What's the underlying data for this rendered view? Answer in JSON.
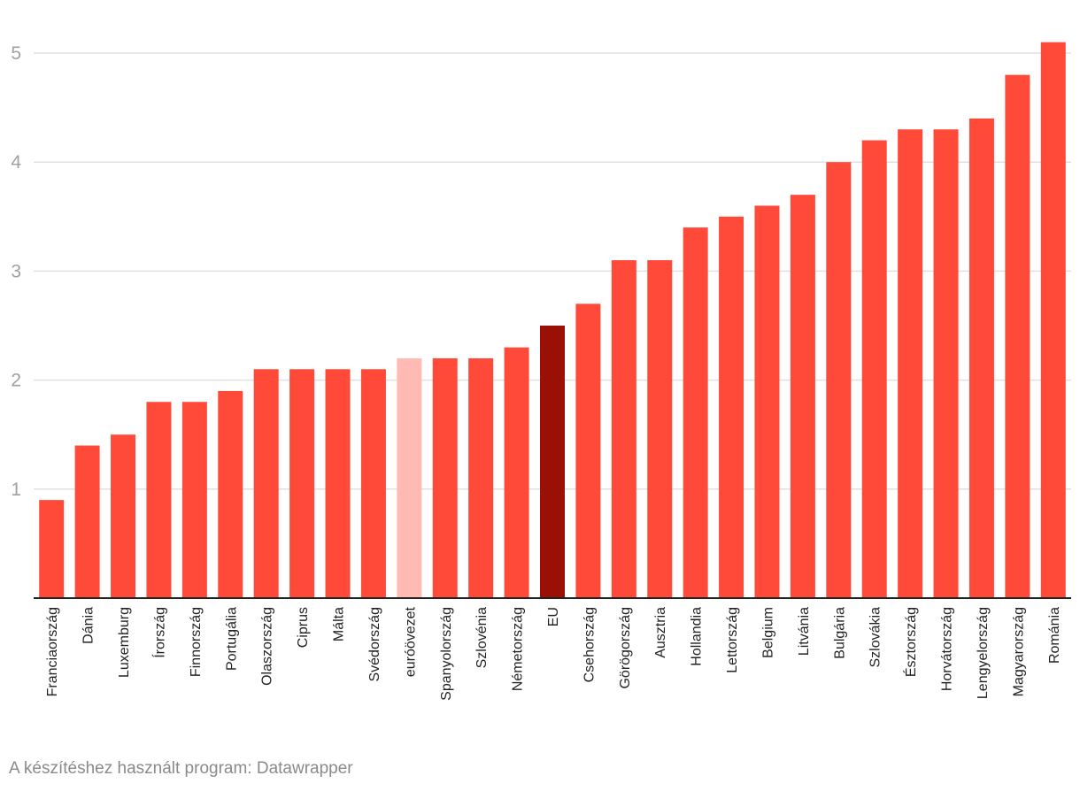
{
  "chart_data": {
    "type": "bar",
    "title": "",
    "xlabel": "",
    "ylabel": "",
    "ylim": [
      0,
      5.2
    ],
    "yticks": [
      1,
      2,
      3,
      4,
      5
    ],
    "grid": true,
    "categories": [
      "Franciaország",
      "Dánia",
      "Luxemburg",
      "Írország",
      "Finnország",
      "Portugália",
      "Olaszország",
      "Ciprus",
      "Málta",
      "Svédország",
      "euróövezet",
      "Spanyolország",
      "Szlovénia",
      "Németország",
      "EU",
      "Csehország",
      "Görögország",
      "Ausztria",
      "Hollandia",
      "Lettország",
      "Belgium",
      "Litvánia",
      "Bulgária",
      "Szlovákia",
      "Észtország",
      "Horvátország",
      "Lengyelország",
      "Magyarország",
      "Románia"
    ],
    "values": [
      0.9,
      1.4,
      1.5,
      1.8,
      1.8,
      1.9,
      2.1,
      2.1,
      2.1,
      2.1,
      2.2,
      2.2,
      2.2,
      2.3,
      2.5,
      2.7,
      3.1,
      3.1,
      3.4,
      3.5,
      3.6,
      3.7,
      4.0,
      4.2,
      4.3,
      4.3,
      4.4,
      4.8,
      5.1
    ],
    "highlights": {
      "euróövezet": "#ffbab4",
      "EU": "#9b1004"
    },
    "colors": {
      "default_bar": "#ff4a3a",
      "gridline": "#e0e0e0",
      "axis": "#222222",
      "tick_label": "#a0a0a0",
      "category_label": "#222222"
    }
  },
  "footer": {
    "credit": "A készítéshez használt program: Datawrapper"
  }
}
